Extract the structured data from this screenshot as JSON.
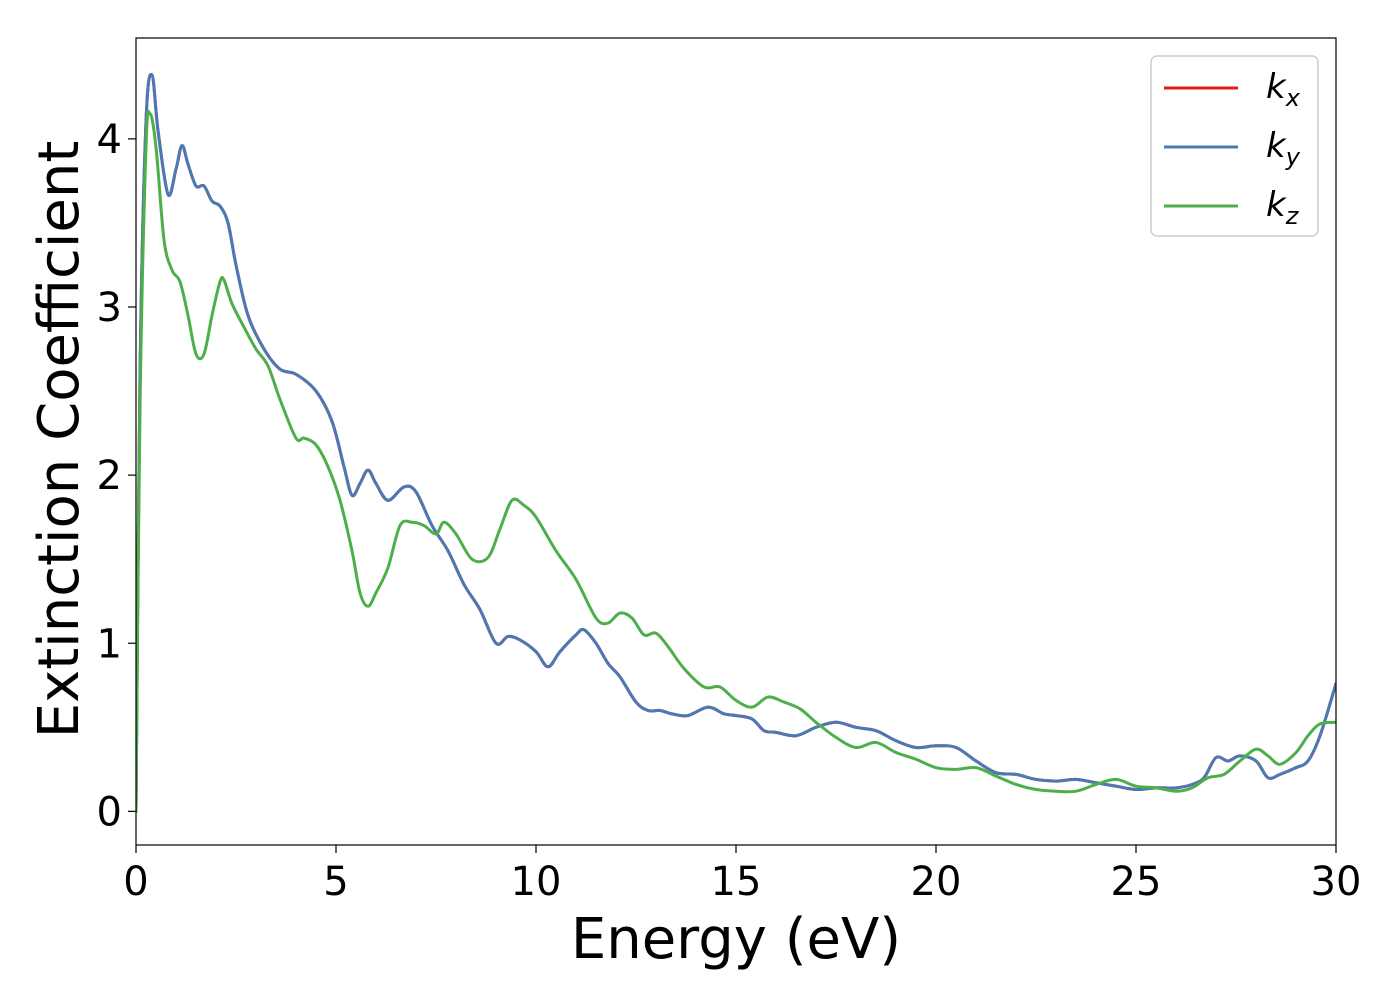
{
  "chart_data": {
    "type": "line",
    "title": "",
    "xlabel": "Energy (eV)",
    "ylabel": "Extinction Coefficient",
    "xlim": [
      0,
      30
    ],
    "ylim": [
      -0.2,
      4.6
    ],
    "xticks": [
      0,
      5,
      10,
      15,
      20,
      25,
      30
    ],
    "xtick_labels": [
      "0",
      "5",
      "10",
      "15",
      "20",
      "25",
      "30"
    ],
    "yticks": [
      0,
      1,
      2,
      3,
      4
    ],
    "ytick_labels": [
      "0",
      "1",
      "2",
      "3",
      "4"
    ],
    "grid": false,
    "legend_position": "top-right",
    "series": [
      {
        "name": "kx",
        "label_base": "k",
        "label_sub": "x",
        "color": "#e41a1c",
        "x": [
          0.0,
          0.1,
          0.25,
          0.4,
          0.55,
          0.8,
          1.0,
          1.15,
          1.3,
          1.5,
          1.7,
          1.9,
          2.1,
          2.3,
          2.5,
          2.8,
          3.2,
          3.6,
          4.0,
          4.5,
          4.9,
          5.2,
          5.4,
          5.6,
          5.8,
          6.0,
          6.3,
          6.7,
          7.0,
          7.4,
          7.8,
          8.2,
          8.6,
          9.0,
          9.3,
          9.6,
          10.0,
          10.3,
          10.6,
          11.0,
          11.2,
          11.5,
          11.8,
          12.1,
          12.5,
          12.8,
          13.1,
          13.4,
          13.8,
          14.3,
          14.7,
          15.0,
          15.4,
          15.7,
          16.0,
          16.5,
          17.0,
          17.5,
          18.0,
          18.5,
          19.0,
          19.5,
          20.0,
          20.5,
          21.0,
          21.5,
          22.0,
          22.5,
          23.0,
          23.5,
          24.0,
          24.5,
          25.0,
          25.5,
          26.0,
          26.4,
          26.7,
          27.0,
          27.3,
          27.6,
          28.0,
          28.3,
          28.6,
          29.0,
          29.3,
          29.6,
          30.0
        ],
        "values": [
          0.0,
          2.6,
          4.1,
          4.38,
          4.05,
          3.67,
          3.82,
          3.96,
          3.85,
          3.72,
          3.72,
          3.63,
          3.6,
          3.5,
          3.25,
          2.95,
          2.75,
          2.63,
          2.6,
          2.5,
          2.32,
          2.05,
          1.88,
          1.95,
          2.03,
          1.95,
          1.85,
          1.93,
          1.9,
          1.7,
          1.55,
          1.35,
          1.2,
          1.0,
          1.04,
          1.02,
          0.95,
          0.86,
          0.95,
          1.05,
          1.08,
          1.0,
          0.88,
          0.8,
          0.65,
          0.6,
          0.6,
          0.58,
          0.57,
          0.62,
          0.58,
          0.57,
          0.55,
          0.48,
          0.47,
          0.45,
          0.5,
          0.53,
          0.5,
          0.48,
          0.42,
          0.38,
          0.39,
          0.38,
          0.3,
          0.23,
          0.22,
          0.19,
          0.18,
          0.19,
          0.17,
          0.15,
          0.13,
          0.14,
          0.14,
          0.16,
          0.2,
          0.32,
          0.3,
          0.33,
          0.3,
          0.2,
          0.22,
          0.26,
          0.3,
          0.45,
          0.76
        ]
      },
      {
        "name": "ky",
        "label_base": "k",
        "label_sub": "y",
        "color": "#4a7ab5",
        "x": [
          0.0,
          0.1,
          0.25,
          0.4,
          0.55,
          0.8,
          1.0,
          1.15,
          1.3,
          1.5,
          1.7,
          1.9,
          2.1,
          2.3,
          2.5,
          2.8,
          3.2,
          3.6,
          4.0,
          4.5,
          4.9,
          5.2,
          5.4,
          5.6,
          5.8,
          6.0,
          6.3,
          6.7,
          7.0,
          7.4,
          7.8,
          8.2,
          8.6,
          9.0,
          9.3,
          9.6,
          10.0,
          10.3,
          10.6,
          11.0,
          11.2,
          11.5,
          11.8,
          12.1,
          12.5,
          12.8,
          13.1,
          13.4,
          13.8,
          14.3,
          14.7,
          15.0,
          15.4,
          15.7,
          16.0,
          16.5,
          17.0,
          17.5,
          18.0,
          18.5,
          19.0,
          19.5,
          20.0,
          20.5,
          21.0,
          21.5,
          22.0,
          22.5,
          23.0,
          23.5,
          24.0,
          24.5,
          25.0,
          25.5,
          26.0,
          26.4,
          26.7,
          27.0,
          27.3,
          27.6,
          28.0,
          28.3,
          28.6,
          29.0,
          29.3,
          29.6,
          30.0
        ],
        "values": [
          0.0,
          2.6,
          4.1,
          4.38,
          4.05,
          3.67,
          3.82,
          3.96,
          3.85,
          3.72,
          3.72,
          3.63,
          3.6,
          3.5,
          3.25,
          2.95,
          2.75,
          2.63,
          2.6,
          2.5,
          2.32,
          2.05,
          1.88,
          1.95,
          2.03,
          1.95,
          1.85,
          1.93,
          1.9,
          1.7,
          1.55,
          1.35,
          1.2,
          1.0,
          1.04,
          1.02,
          0.95,
          0.86,
          0.95,
          1.05,
          1.08,
          1.0,
          0.88,
          0.8,
          0.65,
          0.6,
          0.6,
          0.58,
          0.57,
          0.62,
          0.58,
          0.57,
          0.55,
          0.48,
          0.47,
          0.45,
          0.5,
          0.53,
          0.5,
          0.48,
          0.42,
          0.38,
          0.39,
          0.38,
          0.3,
          0.23,
          0.22,
          0.19,
          0.18,
          0.19,
          0.17,
          0.15,
          0.13,
          0.14,
          0.14,
          0.16,
          0.2,
          0.32,
          0.3,
          0.33,
          0.3,
          0.2,
          0.22,
          0.26,
          0.3,
          0.45,
          0.76
        ]
      },
      {
        "name": "kz",
        "label_base": "k",
        "label_sub": "z",
        "color": "#4daf4a",
        "x": [
          0.0,
          0.1,
          0.25,
          0.35,
          0.5,
          0.7,
          0.9,
          1.1,
          1.3,
          1.5,
          1.7,
          1.9,
          2.1,
          2.2,
          2.4,
          2.7,
          3.0,
          3.3,
          3.6,
          4.0,
          4.2,
          4.5,
          4.8,
          5.1,
          5.4,
          5.6,
          5.8,
          6.0,
          6.3,
          6.6,
          6.9,
          7.2,
          7.5,
          7.7,
          8.0,
          8.4,
          8.8,
          9.1,
          9.4,
          9.7,
          10.0,
          10.5,
          11.0,
          11.5,
          11.8,
          12.1,
          12.4,
          12.7,
          13.0,
          13.3,
          13.7,
          14.2,
          14.6,
          15.0,
          15.4,
          15.8,
          16.2,
          16.6,
          17.0,
          17.5,
          18.0,
          18.5,
          19.0,
          19.5,
          20.0,
          20.5,
          21.0,
          21.5,
          22.0,
          22.5,
          23.0,
          23.5,
          24.0,
          24.5,
          25.0,
          25.5,
          26.0,
          26.4,
          26.8,
          27.2,
          27.6,
          28.0,
          28.3,
          28.6,
          29.0,
          29.3,
          29.6,
          30.0
        ],
        "values": [
          0.0,
          2.4,
          3.95,
          4.15,
          3.95,
          3.4,
          3.22,
          3.15,
          2.95,
          2.72,
          2.72,
          2.95,
          3.15,
          3.16,
          3.02,
          2.88,
          2.75,
          2.65,
          2.45,
          2.22,
          2.22,
          2.18,
          2.05,
          1.85,
          1.55,
          1.3,
          1.22,
          1.3,
          1.45,
          1.7,
          1.72,
          1.7,
          1.65,
          1.72,
          1.65,
          1.5,
          1.51,
          1.68,
          1.85,
          1.82,
          1.75,
          1.55,
          1.38,
          1.15,
          1.12,
          1.18,
          1.15,
          1.05,
          1.06,
          0.98,
          0.85,
          0.74,
          0.74,
          0.66,
          0.62,
          0.68,
          0.65,
          0.61,
          0.53,
          0.44,
          0.38,
          0.41,
          0.35,
          0.31,
          0.26,
          0.25,
          0.26,
          0.21,
          0.16,
          0.13,
          0.12,
          0.12,
          0.16,
          0.19,
          0.15,
          0.14,
          0.12,
          0.14,
          0.2,
          0.22,
          0.3,
          0.37,
          0.33,
          0.28,
          0.35,
          0.45,
          0.52,
          0.53
        ]
      }
    ]
  }
}
